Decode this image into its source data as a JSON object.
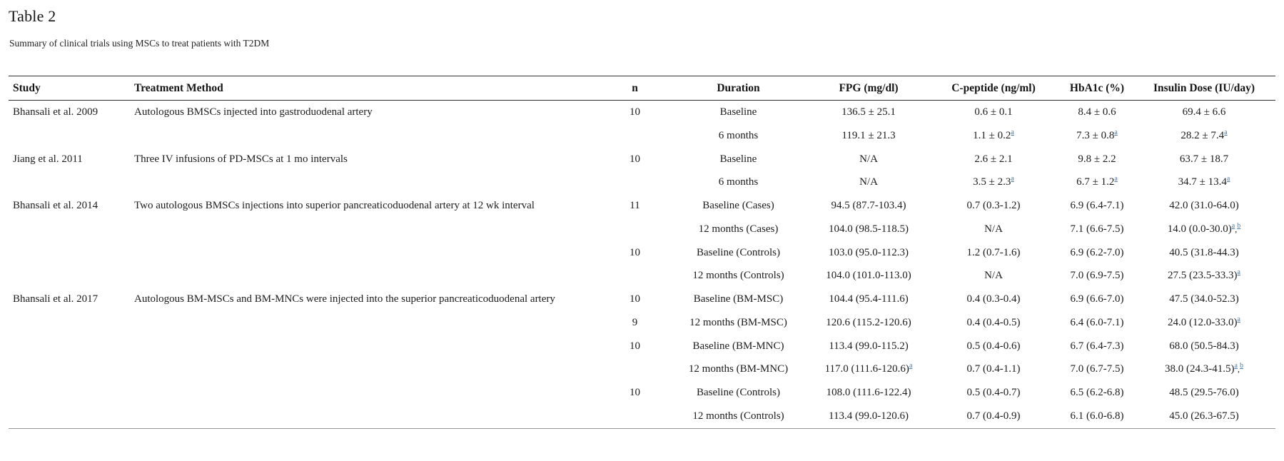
{
  "page": {
    "title": "Table 2",
    "subtitle": "Summary of clinical trials using MSCs to treat patients with T2DM"
  },
  "colors": {
    "background": "#ffffff",
    "text": "#1c1c1c",
    "rule_top": "#2e2e2e",
    "rule_bottom": "#949494",
    "footnote_link": "#4a7ba6"
  },
  "table": {
    "columns": [
      "Study",
      "Treatment Method",
      "n",
      "Duration",
      "FPG (mg/dl)",
      "C-peptide (ng/ml)",
      "HbA1c (%)",
      "Insulin Dose (IU/day)"
    ],
    "footnote_markers": [
      "a",
      "b"
    ],
    "groups": [
      {
        "study": "Bhansali et al. 2009",
        "treatment": "Autologous BMSCs injected into gastroduodenal artery",
        "rows": [
          {
            "cells": [
              "10",
              "Baseline",
              "136.5 ± 25.1",
              "0.6 ± 0.1",
              "8.4 ± 0.6",
              "69.4 ± 6.6"
            ]
          },
          {
            "cells": [
              "",
              "6 months",
              "119.1 ± 21.3",
              "1.1 ± 0.2^a",
              "7.3 ± 0.8^a",
              "28.2 ± 7.4^a"
            ]
          }
        ]
      },
      {
        "study": "Jiang et al. 2011",
        "treatment": "Three IV infusions of PD-MSCs at 1 mo intervals",
        "rows": [
          {
            "cells": [
              "10",
              "Baseline",
              "N/A",
              "2.6 ± 2.1",
              "9.8 ± 2.2",
              "63.7 ± 18.7"
            ]
          },
          {
            "cells": [
              "",
              "6 months",
              "N/A",
              "3.5 ± 2.3^a",
              "6.7 ± 1.2^a",
              "34.7 ± 13.4^a"
            ]
          }
        ]
      },
      {
        "study": "Bhansali et al. 2014",
        "treatment": "Two autologous BMSCs injections into superior pancreaticoduodenal artery at 12 wk interval",
        "rows": [
          {
            "cells": [
              "11",
              "Baseline (Cases)",
              "94.5 (87.7-103.4)",
              "0.7 (0.3-1.2)",
              "6.9 (6.4-7.1)",
              "42.0 (31.0-64.0)"
            ]
          },
          {
            "cells": [
              "",
              "12 months (Cases)",
              "104.0 (98.5-118.5)",
              "N/A",
              "7.1 (6.6-7.5)",
              "14.0 (0.0-30.0)^a,b"
            ]
          },
          {
            "cells": [
              "10",
              "Baseline (Controls)",
              "103.0 (95.0-112.3)",
              "1.2 (0.7-1.6)",
              "6.9 (6.2-7.0)",
              "40.5 (31.8-44.3)"
            ]
          },
          {
            "cells": [
              "",
              "12 months (Controls)",
              "104.0 (101.0-113.0)",
              "N/A",
              "7.0 (6.9-7.5)",
              "27.5 (23.5-33.3)^a"
            ]
          }
        ]
      },
      {
        "study": "Bhansali et al. 2017",
        "treatment": "Autologous BM-MSCs and BM-MNCs were injected into the superior pancreaticoduodenal artery",
        "rows": [
          {
            "cells": [
              "10",
              "Baseline (BM-MSC)",
              "104.4 (95.4-111.6)",
              "0.4 (0.3-0.4)",
              "6.9 (6.6-7.0)",
              "47.5 (34.0-52.3)"
            ]
          },
          {
            "cells": [
              "9",
              "12 months (BM-MSC)",
              "120.6 (115.2-120.6)",
              "0.4 (0.4-0.5)",
              "6.4 (6.0-7.1)",
              "24.0 (12.0-33.0)^a"
            ]
          },
          {
            "cells": [
              "10",
              "Baseline (BM-MNC)",
              "113.4 (99.0-115.2)",
              "0.5 (0.4-0.6)",
              "6.7 (6.4-7.3)",
              "68.0 (50.5-84.3)"
            ]
          },
          {
            "cells": [
              "",
              "12 months (BM-MNC)",
              "117.0 (111.6-120.6)^a",
              "0.7 (0.4-1.1)",
              "7.0 (6.7-7.5)",
              "38.0 (24.3-41.5)^a,b"
            ]
          },
          {
            "cells": [
              "10",
              "Baseline (Controls)",
              "108.0 (111.6-122.4)",
              "0.5 (0.4-0.7)",
              "6.5 (6.2-6.8)",
              "48.5 (29.5-76.0)"
            ]
          },
          {
            "cells": [
              "",
              "12 months (Controls)",
              "113.4 (99.0-120.6)",
              "0.7 (0.4-0.9)",
              "6.1 (6.0-6.8)",
              "45.0 (26.3-67.5)"
            ]
          }
        ]
      }
    ]
  }
}
